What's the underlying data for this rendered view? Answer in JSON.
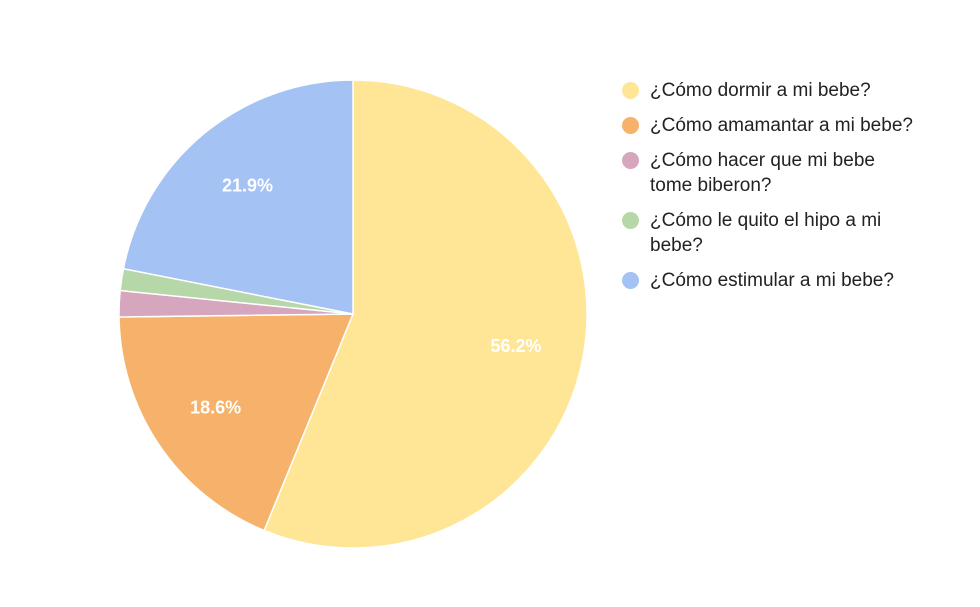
{
  "chart_data": {
    "type": "pie",
    "title": "",
    "legend_position": "right",
    "series": [
      {
        "name": "¿Cómo dormir a mi bebe?",
        "value": 56.2,
        "label": "56.2%",
        "color": "#FFE596"
      },
      {
        "name": "¿Cómo amamantar a mi bebe?",
        "value": 18.6,
        "label": "18.6%",
        "color": "#F6B26B"
      },
      {
        "name": "¿Cómo hacer que mi bebe tome biberon?",
        "value": 1.8,
        "label": "",
        "color": "#D5A6BD"
      },
      {
        "name": "¿Cómo le quito el hipo a mi bebe?",
        "value": 1.5,
        "label": "",
        "color": "#B6D7A8"
      },
      {
        "name": "¿Cómo estimular a mi bebe?",
        "value": 21.9,
        "label": "21.9%",
        "color": "#A4C2F4"
      }
    ]
  }
}
